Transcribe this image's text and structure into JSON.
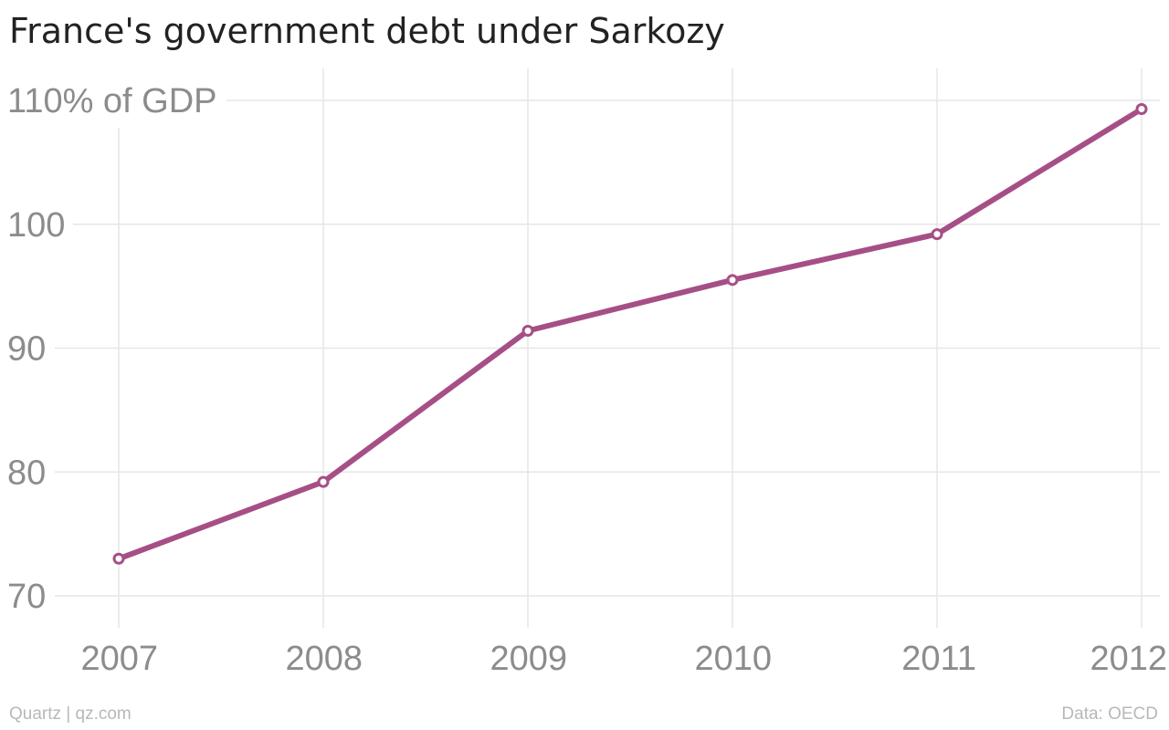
{
  "title": "France's government debt under Sarkozy",
  "footer": {
    "credit": "Quartz | qz.com",
    "source": "Data: OECD"
  },
  "colors": {
    "line": "#a64f86",
    "grid": "#e6e6e6",
    "tick_text": "#8c8c8c",
    "footer_text": "#b8b8b8"
  },
  "chart_data": {
    "type": "line",
    "title": "France's government debt under Sarkozy",
    "xlabel": "",
    "ylabel": "% of GDP",
    "x": [
      2007,
      2008,
      2009,
      2010,
      2011,
      2012
    ],
    "series": [
      {
        "values": [
          73.0,
          79.2,
          91.4,
          95.5,
          99.2,
          109.3
        ]
      }
    ],
    "ylim": [
      70,
      110
    ],
    "xlim": [
      2007,
      2012
    ],
    "y_ticks": [
      70,
      80,
      90,
      100,
      110
    ],
    "y_tick_labels": [
      "70",
      "80",
      "90",
      "100",
      "110% of GDP"
    ],
    "x_tick_labels": [
      "2007",
      "2008",
      "2009",
      "2010",
      "2011",
      "2012"
    ],
    "grid": true,
    "legend": "none",
    "markers": "open-circle"
  }
}
